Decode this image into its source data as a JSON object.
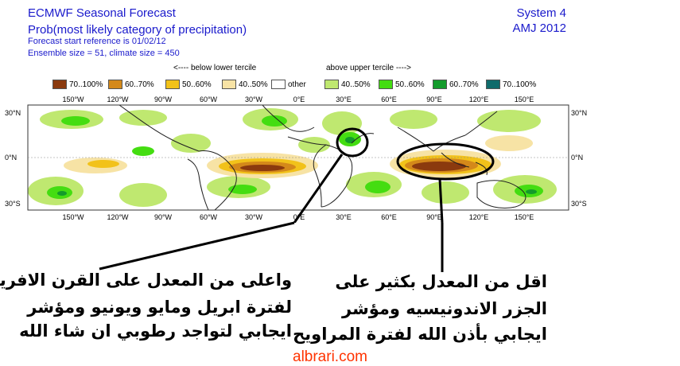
{
  "header": {
    "title": "ECMWF Seasonal Forecast",
    "subtitle": "Prob(most likely category of precipitation)",
    "start_ref": "Forecast start reference is 01/02/12",
    "ensemble": "Ensemble size = 51, climate size = 450",
    "system": "System 4",
    "period": "AMJ 2012"
  },
  "legend": {
    "below_label": "<---- below lower tercile",
    "above_label": "above upper tercile ---->",
    "items": [
      {
        "label": "70..100%",
        "color": "#8b3a0e"
      },
      {
        "label": "60..70%",
        "color": "#d4891a"
      },
      {
        "label": "50..60%",
        "color": "#f2c21a"
      },
      {
        "label": "40..50%",
        "color": "#f7e3a5"
      },
      {
        "label": "other",
        "color": "#ffffff"
      },
      {
        "label": "40..50%",
        "color": "#bfe870"
      },
      {
        "label": "50..60%",
        "color": "#44dd11"
      },
      {
        "label": "60..70%",
        "color": "#139b2b"
      },
      {
        "label": "70..100%",
        "color": "#0f6b6b"
      }
    ]
  },
  "map": {
    "lon_labels": [
      "150°W",
      "120°W",
      "90°W",
      "60°W",
      "30°W",
      "0°E",
      "30°E",
      "60°E",
      "90°E",
      "120°E",
      "150°E"
    ],
    "lat_labels": [
      "30°N",
      "0°N",
      "30°S"
    ]
  },
  "annotations": {
    "left": [
      "واعلى من المعدل على القرن الافريقي",
      "لفترة ابريل ومايو ويونيو ومؤشر",
      "ايجابي لتواجد رطوبي ان شاء الله"
    ],
    "right": [
      "اقل من المعدل بكثير على",
      "الجزر الاندونيسيه ومؤشر",
      "ايجابي بأذن الله لفترة المراويح"
    ]
  },
  "watermark": "albrari.com"
}
